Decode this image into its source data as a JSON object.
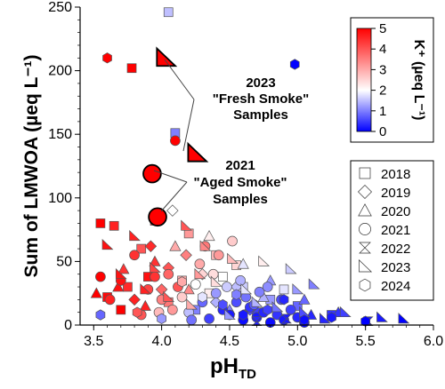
{
  "chart_data": {
    "type": "scatter",
    "xlabel": "pH",
    "xlabel_sub": "TD",
    "ylabel": "Sum of LMWOA (µeq L⁻¹)",
    "xlim": [
      3.4,
      6.0
    ],
    "ylim": [
      0,
      250
    ],
    "xticks": [
      3.5,
      4.0,
      4.5,
      5.0,
      5.5,
      6.0
    ],
    "xtick_labels": [
      "3.5",
      "4.0",
      "4.5",
      "5.0",
      "5.5",
      "6.0"
    ],
    "yticks": [
      0,
      50,
      100,
      150,
      200,
      250
    ],
    "ytick_labels": [
      "0",
      "50",
      "100",
      "150",
      "200",
      "250"
    ],
    "grid": false,
    "colorbar": {
      "label": "K⁺ (µeq L⁻¹)",
      "min": 0,
      "max": 5,
      "ticks": [
        "0",
        "1",
        "2",
        "3",
        "4",
        "5"
      ],
      "colors": [
        "#0000ff",
        "#ffffff",
        "#ff0000"
      ]
    },
    "legend": {
      "placement": "right",
      "entries": [
        {
          "label": "2018",
          "marker": "square"
        },
        {
          "label": "2019",
          "marker": "diamond"
        },
        {
          "label": "2020",
          "marker": "triangle"
        },
        {
          "label": "2021",
          "marker": "circle"
        },
        {
          "label": "2022",
          "marker": "hourglass"
        },
        {
          "label": "2023",
          "marker": "right-triangle"
        },
        {
          "label": "2024",
          "marker": "hexagon"
        }
      ]
    },
    "annotations": [
      {
        "lines": [
          "2023",
          "\"Fresh Smoke\"",
          "Samples"
        ]
      },
      {
        "lines": [
          "2021",
          "\"Aged Smoke\"",
          "Samples"
        ]
      }
    ],
    "highlighted": [
      {
        "x": 4.03,
        "y": 210,
        "marker": "right-triangle",
        "k": 5.0,
        "group": "fresh"
      },
      {
        "x": 4.26,
        "y": 135,
        "marker": "right-triangle",
        "k": 5.0,
        "group": "fresh"
      },
      {
        "x": 3.93,
        "y": 119,
        "marker": "circle",
        "k": 5.0,
        "group": "aged"
      },
      {
        "x": 3.97,
        "y": 85,
        "marker": "circle",
        "k": 5.0,
        "group": "aged"
      }
    ],
    "series": [
      {
        "marker": "square",
        "points": [
          [
            4.05,
            246,
            1.5
          ],
          [
            3.78,
            202,
            5.0
          ],
          [
            4.1,
            151,
            1.0
          ],
          [
            3.55,
            80,
            5.0
          ],
          [
            3.65,
            78,
            4.6
          ],
          [
            3.95,
            82,
            4.2
          ],
          [
            4.2,
            72,
            3.2
          ],
          [
            3.85,
            60,
            4.0
          ],
          [
            4.4,
            55,
            2.8
          ],
          [
            4.55,
            47,
            2.5
          ],
          [
            3.9,
            38,
            4.8
          ],
          [
            4.15,
            35,
            3.0
          ],
          [
            4.6,
            30,
            1.6
          ],
          [
            4.8,
            20,
            1.2
          ],
          [
            5.0,
            15,
            0.8
          ],
          [
            4.35,
            25,
            2.2
          ],
          [
            3.75,
            30,
            4.5
          ],
          [
            4.25,
            12,
            1.0
          ],
          [
            4.7,
            10,
            0.5
          ],
          [
            5.25,
            8,
            0.4
          ],
          [
            3.7,
            12,
            5.0
          ],
          [
            4.05,
            18,
            3.6
          ],
          [
            4.45,
            38,
            2.0
          ],
          [
            3.6,
            22,
            4.9
          ],
          [
            4.9,
            28,
            1.8
          ]
        ]
      },
      {
        "marker": "diamond",
        "points": [
          [
            4.08,
            90,
            2.0
          ],
          [
            3.92,
            62,
            4.5
          ],
          [
            4.18,
            55,
            3.5
          ],
          [
            4.05,
            45,
            4.0
          ],
          [
            4.3,
            40,
            2.5
          ],
          [
            4.55,
            30,
            1.5
          ],
          [
            3.8,
            20,
            4.6
          ],
          [
            4.65,
            12,
            0.6
          ],
          [
            4.0,
            28,
            3.8
          ],
          [
            4.4,
            18,
            1.4
          ]
        ]
      },
      {
        "marker": "triangle",
        "points": [
          [
            3.52,
            25,
            5.0
          ],
          [
            3.68,
            30,
            4.8
          ],
          [
            3.95,
            50,
            4.4
          ],
          [
            4.1,
            62,
            3.0
          ],
          [
            4.35,
            70,
            2.2
          ],
          [
            4.6,
            48,
            1.8
          ],
          [
            4.8,
            35,
            1.2
          ],
          [
            5.05,
            20,
            0.8
          ],
          [
            5.3,
            10,
            0.4
          ],
          [
            4.2,
            28,
            3.4
          ],
          [
            3.88,
            15,
            4.6
          ],
          [
            4.5,
            12,
            1.0
          ],
          [
            5.1,
            8,
            0.3
          ],
          [
            3.72,
            44,
            4.4
          ],
          [
            4.75,
            22,
            1.4
          ]
        ]
      },
      {
        "marker": "circle",
        "points": [
          [
            4.1,
            145,
            5.0
          ],
          [
            3.55,
            38,
            5.0
          ],
          [
            3.62,
            20,
            4.6
          ],
          [
            3.7,
            35,
            4.8
          ],
          [
            3.8,
            55,
            4.4
          ],
          [
            3.9,
            28,
            4.2
          ],
          [
            4.0,
            20,
            3.5
          ],
          [
            4.05,
            40,
            3.8
          ],
          [
            4.15,
            22,
            2.6
          ],
          [
            4.2,
            10,
            1.5
          ],
          [
            4.25,
            32,
            2.0
          ],
          [
            4.3,
            18,
            0.8
          ],
          [
            4.35,
            5,
            0.5
          ],
          [
            4.4,
            25,
            1.2
          ],
          [
            4.45,
            12,
            0.3
          ],
          [
            4.5,
            8,
            0.2
          ],
          [
            4.55,
            18,
            0.6
          ],
          [
            4.6,
            4,
            0.1
          ],
          [
            4.65,
            14,
            0.4
          ],
          [
            4.7,
            6,
            0.2
          ],
          [
            4.75,
            10,
            0.3
          ],
          [
            4.8,
            2,
            0.1
          ],
          [
            4.85,
            8,
            0.4
          ],
          [
            4.9,
            4,
            0.2
          ],
          [
            4.95,
            12,
            0.5
          ],
          [
            5.0,
            6,
            0.3
          ],
          [
            5.05,
            2,
            0.1
          ],
          [
            4.38,
            40,
            2.4
          ],
          [
            4.48,
            30,
            1.6
          ],
          [
            4.62,
            22,
            0.9
          ],
          [
            4.28,
            48,
            3.0
          ],
          [
            3.98,
            10,
            2.8
          ],
          [
            4.12,
            30,
            4.0
          ],
          [
            4.58,
            35,
            1.4
          ],
          [
            4.72,
            26,
            1.0
          ],
          [
            3.85,
            8,
            4.0
          ],
          [
            4.42,
            55,
            3.2
          ],
          [
            4.32,
            62,
            3.6
          ],
          [
            4.52,
            66,
            2.6
          ],
          [
            4.68,
            16,
            0.7
          ],
          [
            4.78,
            30,
            1.1
          ],
          [
            4.88,
            20,
            0.6
          ],
          [
            4.22,
            4,
            0.9
          ],
          [
            4.08,
            12,
            3.2
          ],
          [
            3.95,
            38,
            4.4
          ]
        ]
      },
      {
        "marker": "hourglass",
        "points": [
          [
            5.52,
            3,
            0.2
          ],
          [
            4.7,
            3,
            0.3
          ],
          [
            4.92,
            5,
            0.2
          ]
        ]
      },
      {
        "marker": "right-triangle",
        "points": [
          [
            3.6,
            63,
            4.8
          ],
          [
            3.8,
            70,
            4.6
          ],
          [
            4.18,
            78,
            4.0
          ],
          [
            4.32,
            62,
            3.4
          ],
          [
            4.52,
            52,
            2.8
          ],
          [
            4.75,
            50,
            2.2
          ],
          [
            4.95,
            44,
            1.6
          ],
          [
            5.12,
            32,
            1.0
          ],
          [
            5.35,
            10,
            0.5
          ],
          [
            5.62,
            6,
            0.2
          ],
          [
            5.78,
            5,
            0.0
          ],
          [
            3.95,
            45,
            4.2
          ],
          [
            4.4,
            34,
            2.4
          ],
          [
            4.62,
            28,
            1.8
          ],
          [
            4.85,
            14,
            0.9
          ],
          [
            5.05,
            10,
            0.6
          ],
          [
            5.2,
            5,
            0.3
          ],
          [
            4.22,
            16,
            3.0
          ],
          [
            3.7,
            40,
            4.8
          ],
          [
            4.05,
            22,
            4.0
          ],
          [
            4.5,
            8,
            1.2
          ],
          [
            4.7,
            18,
            1.4
          ],
          [
            5.0,
            28,
            1.2
          ],
          [
            4.28,
            40,
            3.2
          ],
          [
            3.88,
            28,
            4.6
          ]
        ]
      },
      {
        "marker": "hexagon",
        "points": [
          [
            3.6,
            210,
            5.0
          ],
          [
            4.98,
            205,
            0.0
          ],
          [
            3.55,
            8,
            0.8
          ],
          [
            3.82,
            10,
            4.0
          ],
          [
            4.0,
            5,
            1.2
          ],
          [
            4.45,
            16,
            0.6
          ],
          [
            4.6,
            8,
            0.2
          ],
          [
            4.78,
            12,
            0.5
          ],
          [
            4.9,
            20,
            0.3
          ],
          [
            5.05,
            4,
            0.1
          ],
          [
            5.25,
            6,
            0.2
          ],
          [
            5.5,
            3,
            0.0
          ],
          [
            4.3,
            22,
            1.8
          ],
          [
            4.15,
            34,
            3.0
          ],
          [
            4.55,
            24,
            1.0
          ]
        ]
      }
    ]
  }
}
